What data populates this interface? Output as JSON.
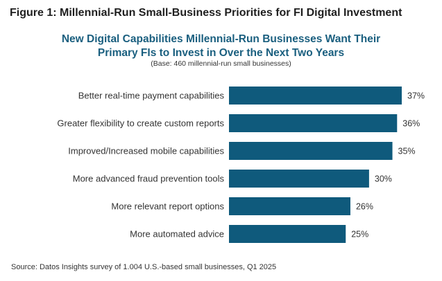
{
  "figure_title": "Figure 1: Millennial-Run Small-Business Priorities for FI Digital Investment",
  "source": "Source: Datos Insights survey of 1.004 U.S.-based small businesses, Q1 2025",
  "chart_data": {
    "type": "bar",
    "orientation": "horizontal",
    "title": "New Digital Capabilities Millennial-Run Businesses Want Their Primary FIs to Invest in Over the Next Two Years",
    "title_lines": [
      "New Digital Capabilities Millennial-Run Businesses Want Their",
      "Primary FIs to Invest in Over the Next Two Years"
    ],
    "subtitle": "(Base: 460 millennial-run small businesses)",
    "categories": [
      "Better real-time payment capabilities",
      "Greater flexibility to create custom reports",
      "Improved/Increased mobile capabilities",
      "More advanced fraud prevention tools",
      "More relevant report options",
      "More automated advice"
    ],
    "values": [
      37,
      36,
      35,
      30,
      26,
      25
    ],
    "value_labels": [
      "37%",
      "36%",
      "35%",
      "30%",
      "26%",
      "25%"
    ],
    "unit": "%",
    "xlim": [
      0,
      37
    ],
    "bar_color": "#0f5a7c",
    "grid": false,
    "legend": "none"
  }
}
